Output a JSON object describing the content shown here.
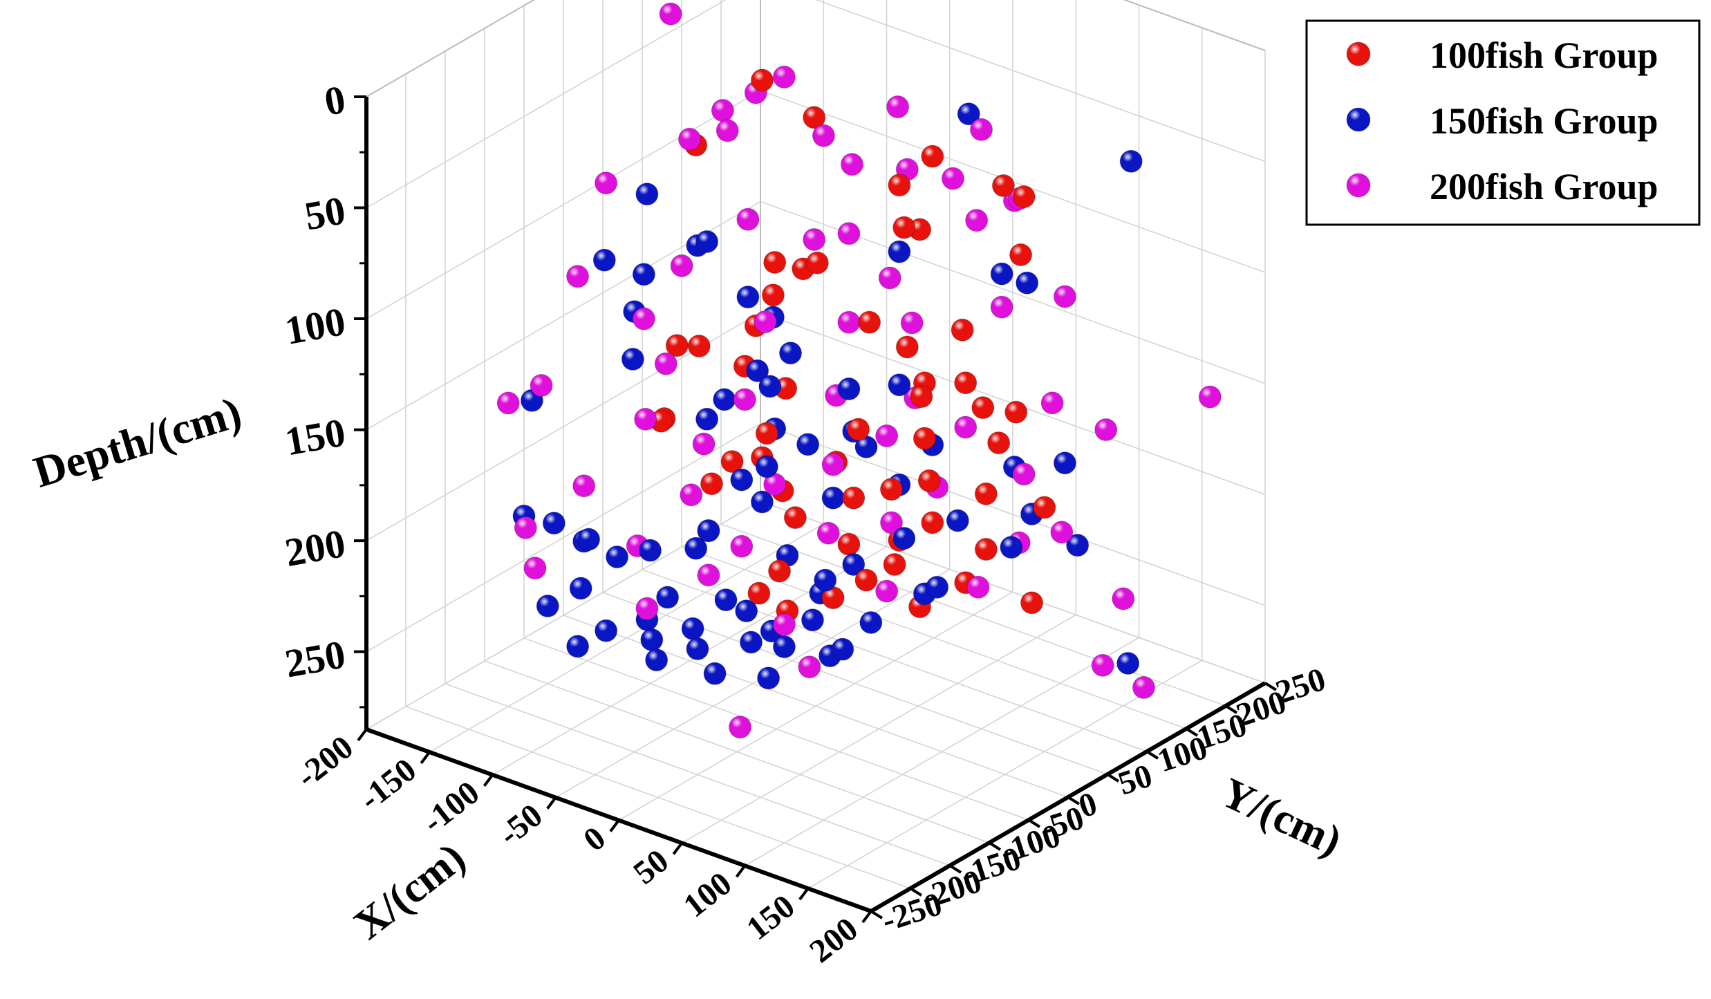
{
  "chart_data": {
    "type": "scatter3d",
    "axes": {
      "x": {
        "label": "X/(cm)",
        "range": [
          -200,
          200
        ],
        "ticks": [
          -200,
          -150,
          -100,
          -50,
          0,
          50,
          100,
          150,
          200
        ]
      },
      "y": {
        "label": "Y/(cm)",
        "range": [
          -250,
          250
        ],
        "ticks": [
          -250,
          -200,
          -150,
          -100,
          -50,
          0,
          50,
          100,
          150,
          200,
          250
        ]
      },
      "z": {
        "label": "Depth/(cm)",
        "range": [
          0,
          285
        ],
        "reversed": true,
        "ticks": [
          0,
          50,
          100,
          150,
          200,
          250
        ]
      }
    },
    "grid": true,
    "legend": {
      "position": "top-right"
    },
    "series": [
      {
        "name": "100fish Group",
        "color": "#e8120c",
        "points": [
          [
            -30,
            -20,
            5
          ],
          [
            80,
            20,
            25
          ],
          [
            -20,
            30,
            30
          ],
          [
            130,
            30,
            30
          ],
          [
            140,
            40,
            35
          ],
          [
            60,
            10,
            40
          ],
          [
            -120,
            40,
            65
          ],
          [
            70,
            0,
            55
          ],
          [
            70,
            20,
            60
          ],
          [
            150,
            20,
            55
          ],
          [
            20,
            -30,
            75
          ],
          [
            -20,
            -20,
            85
          ],
          [
            -10,
            0,
            90
          ],
          [
            110,
            10,
            95
          ],
          [
            -40,
            10,
            110
          ],
          [
            30,
            20,
            110
          ],
          [
            60,
            20,
            115
          ],
          [
            80,
            10,
            125
          ],
          [
            90,
            -10,
            125
          ],
          [
            100,
            30,
            125
          ],
          [
            -60,
            20,
            130
          ],
          [
            120,
            20,
            130
          ],
          [
            140,
            30,
            130
          ],
          [
            -80,
            -20,
            135
          ],
          [
            -50,
            -10,
            140
          ],
          [
            -110,
            0,
            145
          ],
          [
            -30,
            10,
            150
          ],
          [
            40,
            -10,
            150
          ],
          [
            80,
            10,
            150
          ],
          [
            120,
            40,
            150
          ],
          [
            -20,
            -30,
            160
          ],
          [
            90,
            0,
            165
          ],
          [
            -110,
            -20,
            175
          ],
          [
            -30,
            -20,
            175
          ],
          [
            10,
            10,
            175
          ],
          [
            60,
            0,
            175
          ],
          [
            110,
            40,
            175
          ],
          [
            150,
            50,
            175
          ],
          [
            -120,
            0,
            180
          ],
          [
            -60,
            -10,
            185
          ],
          [
            30,
            0,
            185
          ],
          [
            -20,
            -10,
            190
          ],
          [
            80,
            20,
            190
          ],
          [
            -70,
            -20,
            195
          ],
          [
            -10,
            -10,
            200
          ],
          [
            60,
            10,
            200
          ],
          [
            110,
            40,
            200
          ],
          [
            -60,
            -40,
            210
          ],
          [
            20,
            10,
            210
          ],
          [
            50,
            20,
            215
          ],
          [
            100,
            30,
            215
          ],
          [
            -10,
            -30,
            220
          ],
          [
            40,
            0,
            220
          ],
          [
            140,
            50,
            220
          ],
          [
            -20,
            -40,
            230
          ],
          [
            20,
            -10,
            230
          ],
          [
            70,
            20,
            230
          ],
          [
            -10,
            -20,
            240
          ]
        ]
      },
      {
        "name": "150fish Group",
        "color": "#0a16c4",
        "points": [
          [
            90,
            50,
            10
          ],
          [
            200,
            80,
            15
          ],
          [
            60,
            10,
            70
          ],
          [
            110,
            60,
            80
          ],
          [
            130,
            60,
            80
          ],
          [
            -140,
            10,
            85
          ],
          [
            -80,
            -10,
            90
          ],
          [
            -100,
            10,
            100
          ],
          [
            -130,
            -10,
            115
          ],
          [
            -60,
            10,
            115
          ],
          [
            -40,
            10,
            120
          ],
          [
            -180,
            20,
            125
          ],
          [
            60,
            10,
            130
          ],
          [
            -20,
            0,
            130
          ],
          [
            -150,
            10,
            140
          ],
          [
            -40,
            -10,
            140
          ],
          [
            20,
            10,
            140
          ],
          [
            -120,
            -40,
            145
          ],
          [
            -30,
            -10,
            145
          ],
          [
            -60,
            -20,
            155
          ],
          [
            30,
            0,
            155
          ],
          [
            80,
            20,
            155
          ],
          [
            160,
            60,
            155
          ],
          [
            -20,
            -20,
            160
          ],
          [
            40,
            0,
            160
          ],
          [
            0,
            -10,
            165
          ],
          [
            120,
            60,
            165
          ],
          [
            -80,
            -10,
            170
          ],
          [
            -20,
            -30,
            175
          ],
          [
            60,
            10,
            175
          ],
          [
            140,
            50,
            180
          ],
          [
            -200,
            -40,
            180
          ],
          [
            -40,
            -30,
            185
          ],
          [
            20,
            -10,
            185
          ],
          [
            100,
            20,
            185
          ],
          [
            170,
            60,
            190
          ],
          [
            -30,
            -20,
            195
          ],
          [
            70,
            0,
            195
          ],
          [
            130,
            40,
            195
          ],
          [
            -60,
            -40,
            210
          ],
          [
            -10,
            -20,
            215
          ],
          [
            30,
            0,
            215
          ],
          [
            90,
            10,
            215
          ],
          [
            -130,
            -80,
            220
          ],
          [
            -70,
            -40,
            220
          ],
          [
            20,
            -20,
            220
          ],
          [
            80,
            10,
            220
          ],
          [
            -170,
            -60,
            225
          ],
          [
            -140,
            -70,
            225
          ],
          [
            -100,
            -50,
            225
          ],
          [
            -200,
            -50,
            230
          ],
          [
            -120,
            -60,
            230
          ],
          [
            10,
            -10,
            230
          ],
          [
            -40,
            -50,
            235
          ],
          [
            50,
            -10,
            235
          ],
          [
            210,
            60,
            235
          ],
          [
            -130,
            -90,
            240
          ],
          [
            -80,
            -60,
            240
          ],
          [
            -30,
            -40,
            240
          ],
          [
            10,
            -20,
            240
          ],
          [
            -10,
            -40,
            245
          ],
          [
            40,
            -30,
            245
          ],
          [
            -150,
            -100,
            250
          ],
          [
            -90,
            -70,
            250
          ],
          [
            -60,
            -60,
            250
          ],
          [
            -20,
            -50,
            250
          ],
          [
            0,
            -40,
            250
          ],
          [
            30,
            -30,
            250
          ],
          [
            -110,
            -90,
            255
          ],
          [
            -80,
            -80,
            255
          ],
          [
            -50,
            -70,
            255
          ],
          [
            -120,
            -110,
            260
          ],
          [
            -70,
            -90,
            260
          ],
          [
            -30,
            -80,
            260
          ],
          [
            0,
            -60,
            260
          ]
        ]
      },
      {
        "name": "200fish Group",
        "color": "#e010dc",
        "points": [
          [
            -140,
            40,
            10
          ],
          [
            -50,
            40,
            20
          ],
          [
            40,
            40,
            15
          ],
          [
            100,
            50,
            15
          ],
          [
            -60,
            20,
            25
          ],
          [
            -80,
            10,
            35
          ],
          [
            0,
            10,
            30
          ],
          [
            60,
            20,
            35
          ],
          [
            90,
            30,
            35
          ],
          [
            130,
            50,
            40
          ],
          [
            -70,
            0,
            40
          ],
          [
            10,
            30,
            45
          ],
          [
            120,
            60,
            45
          ],
          [
            -100,
            0,
            50
          ],
          [
            90,
            60,
            60
          ],
          [
            20,
            10,
            70
          ],
          [
            -160,
            -10,
            80
          ],
          [
            -60,
            10,
            80
          ],
          [
            160,
            60,
            80
          ],
          [
            -20,
            30,
            85
          ],
          [
            40,
            30,
            90
          ],
          [
            110,
            60,
            95
          ],
          [
            70,
            10,
            100
          ],
          [
            -100,
            -10,
            105
          ],
          [
            20,
            10,
            110
          ],
          [
            250,
            100,
            115
          ],
          [
            -170,
            -30,
            120
          ],
          [
            -40,
            0,
            120
          ],
          [
            150,
            60,
            130
          ],
          [
            -130,
            -10,
            135
          ],
          [
            60,
            30,
            140
          ],
          [
            180,
            80,
            140
          ],
          [
            -100,
            -30,
            145
          ],
          [
            10,
            10,
            145
          ],
          [
            100,
            30,
            145
          ],
          [
            -50,
            -10,
            155
          ],
          [
            50,
            10,
            155
          ],
          [
            140,
            40,
            160
          ],
          [
            -180,
            -60,
            165
          ],
          [
            -110,
            -40,
            170
          ],
          [
            20,
            -10,
            170
          ],
          [
            90,
            10,
            170
          ],
          [
            -200,
            -70,
            175
          ],
          [
            -70,
            -30,
            175
          ],
          [
            170,
            40,
            180
          ],
          [
            -20,
            -20,
            185
          ],
          [
            60,
            0,
            190
          ],
          [
            130,
            50,
            195
          ],
          [
            -140,
            -70,
            200
          ],
          [
            -80,
            -30,
            200
          ],
          [
            10,
            0,
            205
          ],
          [
            200,
            70,
            210
          ],
          [
            -40,
            -30,
            215
          ],
          [
            110,
            30,
            215
          ],
          [
            -180,
            -80,
            225
          ],
          [
            -110,
            -50,
            225
          ],
          [
            50,
            10,
            225
          ],
          [
            -60,
            -40,
            230
          ],
          [
            -160,
            -100,
            235
          ],
          [
            0,
            -40,
            240
          ],
          [
            190,
            60,
            240
          ],
          [
            -90,
            -70,
            245
          ],
          [
            210,
            80,
            250
          ],
          [
            20,
            -40,
            255
          ],
          [
            -10,
            -80,
            280
          ]
        ]
      }
    ]
  }
}
